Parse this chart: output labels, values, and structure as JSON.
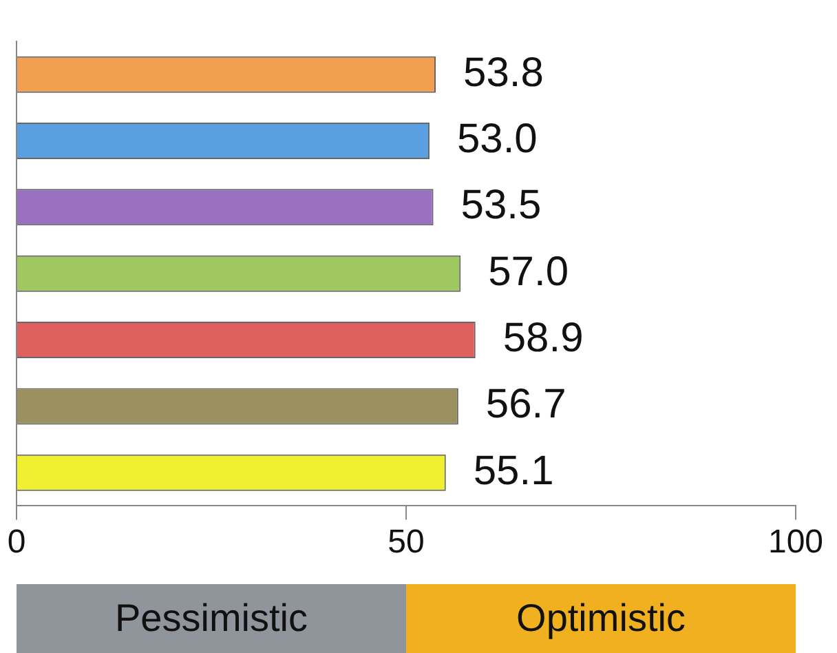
{
  "chart_data": {
    "type": "bar",
    "orientation": "horizontal",
    "categories": [
      null,
      null,
      null,
      null,
      null,
      null,
      null
    ],
    "values": [
      53.8,
      53.0,
      53.5,
      57.0,
      58.9,
      56.7,
      55.1
    ],
    "colors": [
      "#f0a050",
      "#5aa0e0",
      "#9a70c0",
      "#a0c860",
      "#e06060",
      "#9a9060",
      "#f0f030"
    ],
    "value_labels": [
      "53.8",
      "53.0",
      "53.5",
      "57.0",
      "58.9",
      "56.7",
      "55.1"
    ],
    "xlim": [
      0,
      100
    ],
    "xticks": [
      0,
      50,
      100
    ],
    "grid": false,
    "legend": false,
    "tick_labels": "x",
    "annotations": [
      "Pessimistic",
      "Optimistic"
    ]
  }
}
